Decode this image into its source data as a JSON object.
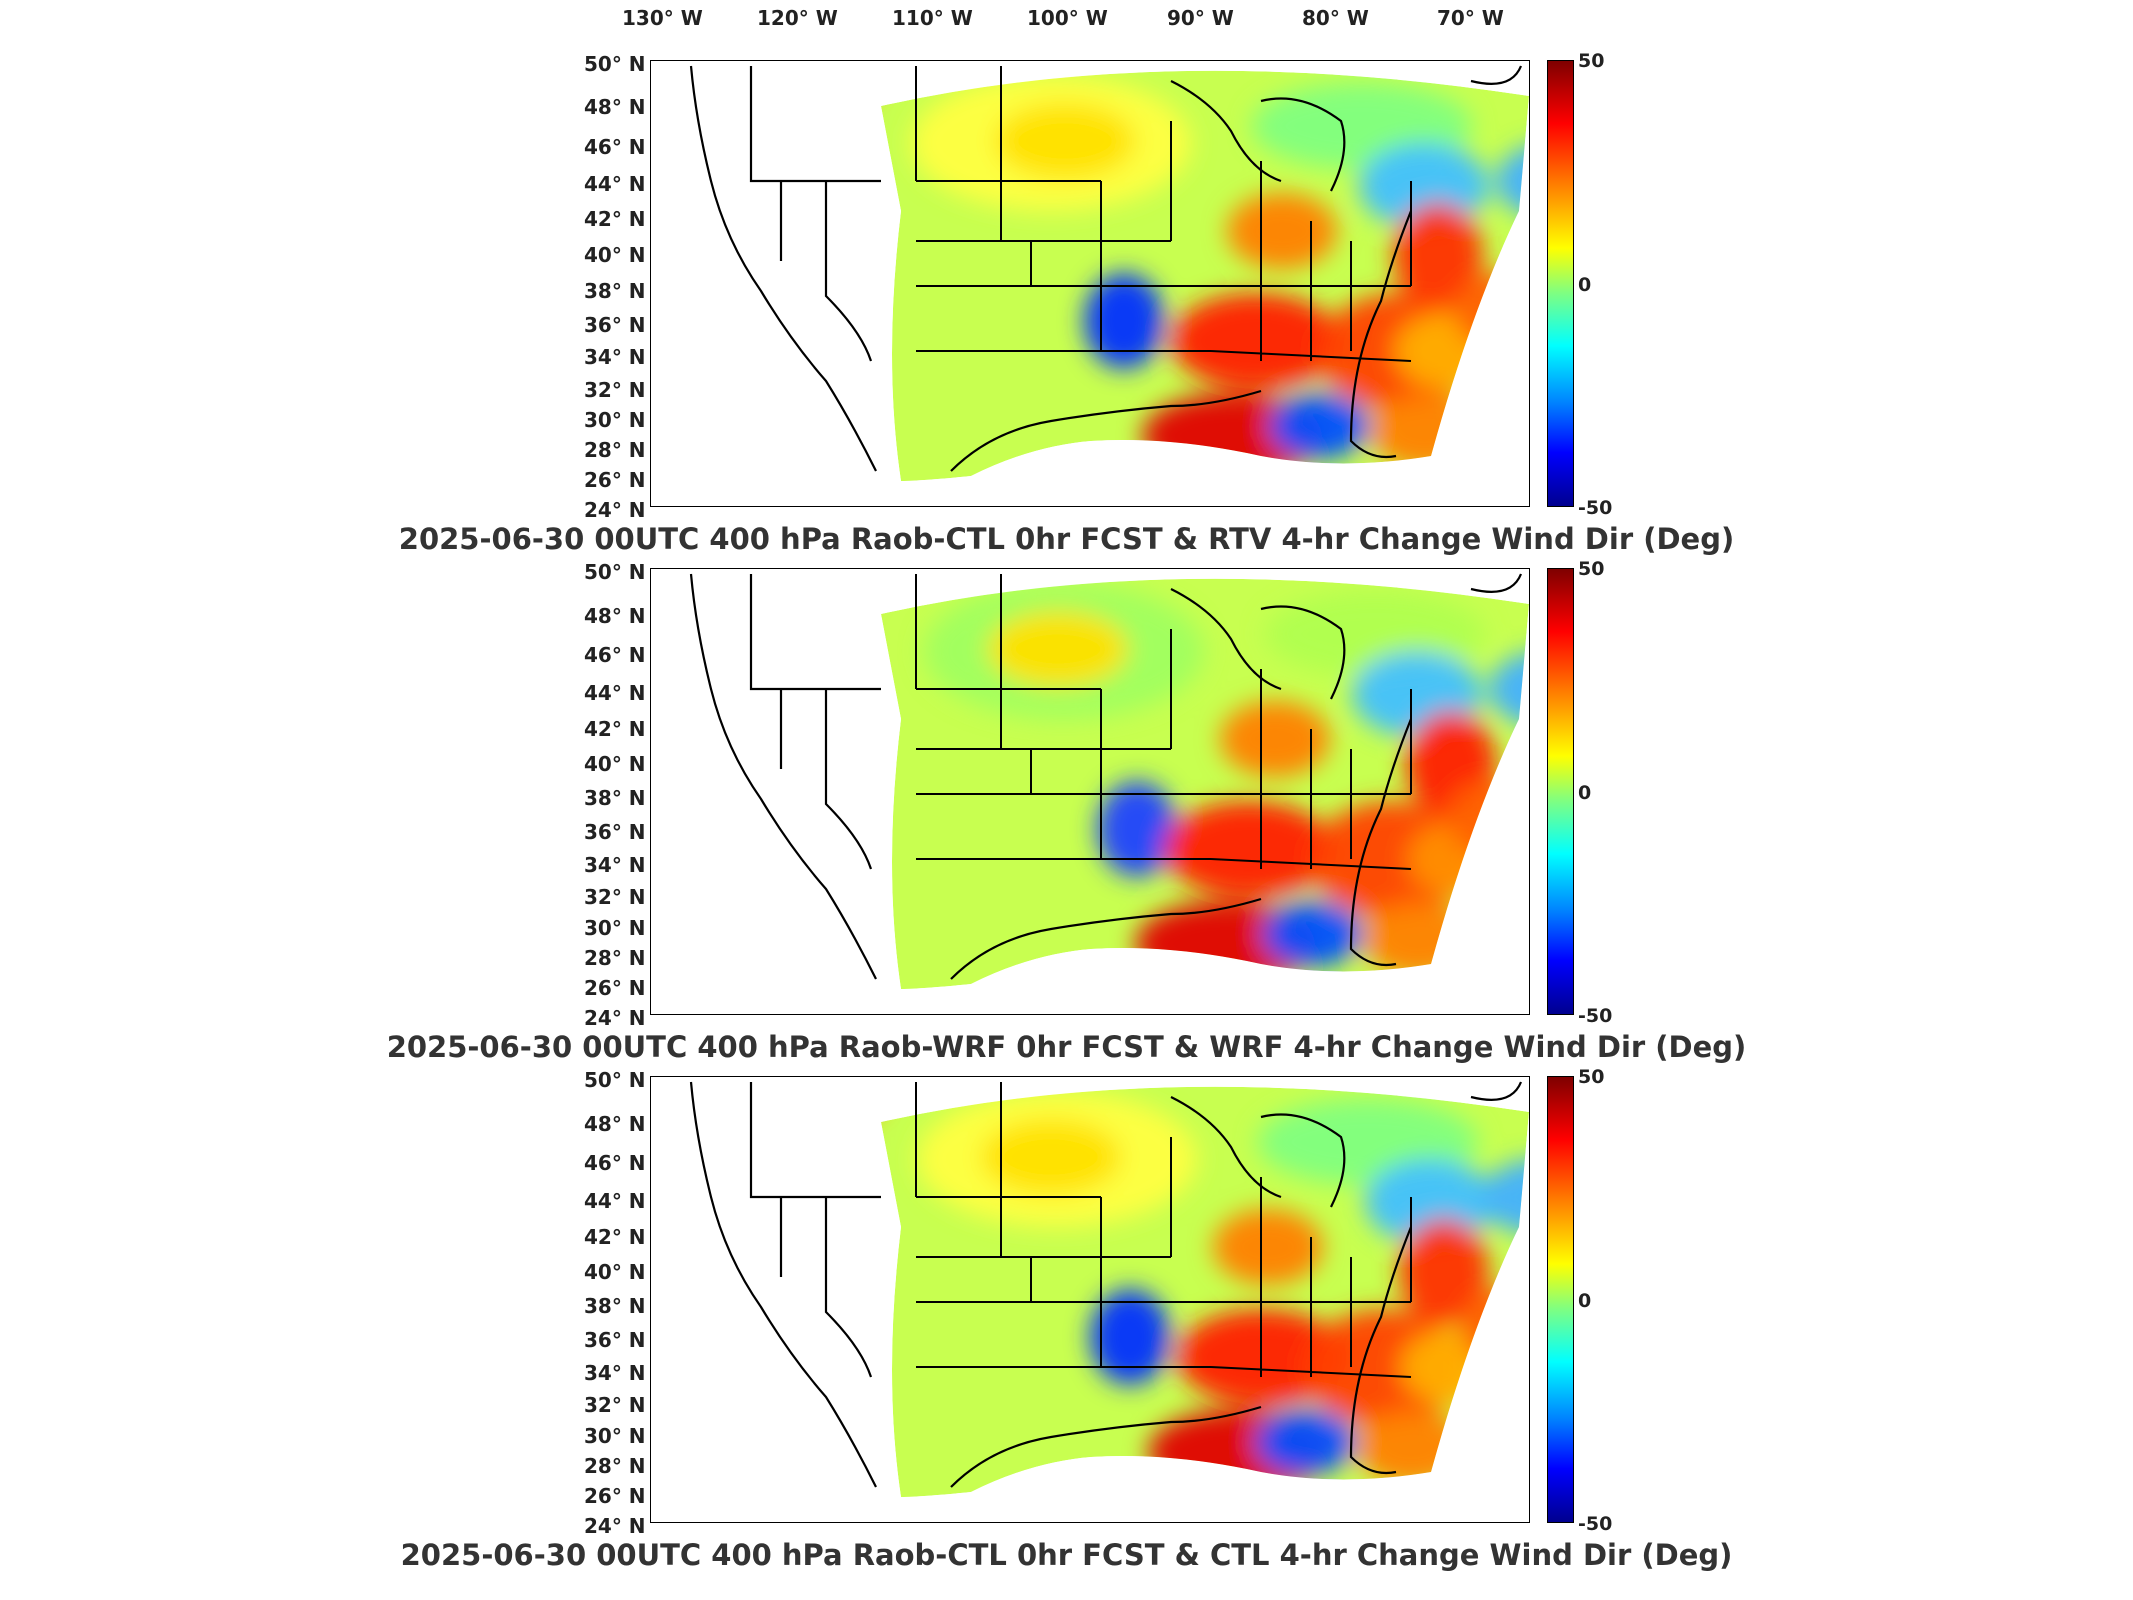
{
  "lon_labels": [
    "130° W",
    "120° W",
    "110° W",
    "100° W",
    "90° W",
    "80° W",
    "70° W"
  ],
  "lat_labels": [
    "50° N",
    "48° N",
    "46° N",
    "44° N",
    "42° N",
    "40° N",
    "38° N",
    "36° N",
    "34° N",
    "32° N",
    "30° N",
    "28° N",
    "26° N",
    "24° N"
  ],
  "colorbar": {
    "max": "50",
    "mid": "0",
    "min": "-50"
  },
  "colors": {
    "background": "#ffffff",
    "border": "#000000"
  },
  "panels": [
    {
      "title": "2025-06-30 00UTC 400 hPa Raob-CTL 0hr FCST & RTV 4-hr Change Wind Dir (Deg)"
    },
    {
      "title": "2025-06-30 00UTC 400 hPa Raob-WRF 0hr FCST & WRF 4-hr Change Wind Dir (Deg)"
    },
    {
      "title": "2025-06-30 00UTC 400 hPa Raob-CTL 0hr FCST & CTL 4-hr Change Wind Dir (Deg)"
    }
  ]
}
